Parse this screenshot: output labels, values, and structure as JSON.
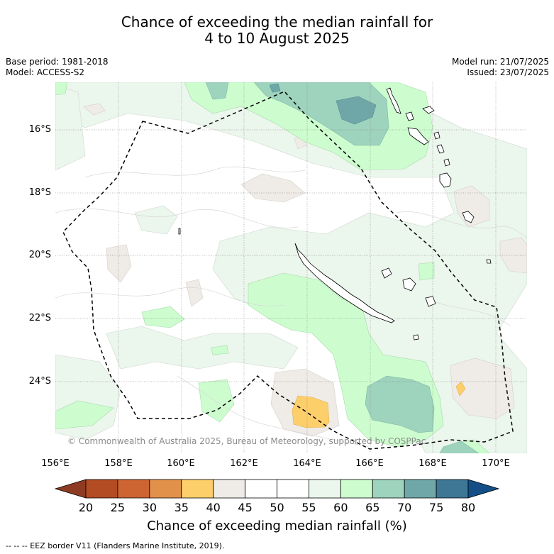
{
  "header": {
    "title_line1": "Chance of exceeding the median rainfall for",
    "title_line2": "4 to 10 August 2025",
    "base_period": "Base period: 1981-2018",
    "model": "Model: ACCESS-S2",
    "model_run": "Model run: 21/07/2025",
    "issued": "Issued: 23/07/2025"
  },
  "map": {
    "lat_labels": [
      "16°S",
      "18°S",
      "20°S",
      "22°S",
      "24°S"
    ],
    "lon_labels": [
      "156°E",
      "158°E",
      "160°E",
      "162°E",
      "164°E",
      "166°E",
      "168°E",
      "170°E"
    ],
    "copyright": "© Commonwealth of Australia 2025, Bureau of Meteorology, supported by COSPPac",
    "eez_border_style": "dashed black"
  },
  "colorbar": {
    "ticks": [
      "20",
      "25",
      "30",
      "35",
      "40",
      "45",
      "50",
      "55",
      "60",
      "65",
      "70",
      "75",
      "80"
    ],
    "colors": [
      "#8e3b24",
      "#b34b23",
      "#cd6533",
      "#e2914b",
      "#fdcf6b",
      "#efebe7",
      "#ffffff",
      "#ffffff",
      "#ebf6ec",
      "#cdfdcf",
      "#9ed3bd",
      "#6fa7a9",
      "#3d7795",
      "#134f86"
    ],
    "title": "Chance of exceeding median rainfall (%)"
  },
  "footnote": "--  --  -- EEZ border V11 (Flanders Marine Institute, 2019)."
}
